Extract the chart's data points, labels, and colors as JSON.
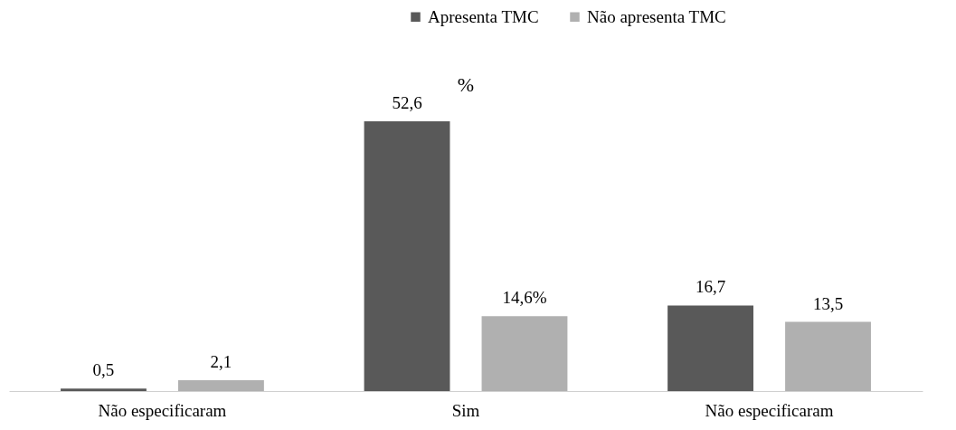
{
  "chart_data": {
    "type": "bar",
    "annotations": [
      "%"
    ],
    "categories": [
      "Não especificaram",
      "Sim",
      "Não especificaram"
    ],
    "series": [
      {
        "name": "Apresenta TMC",
        "color": "#595959",
        "values": [
          0.5,
          52.6,
          16.7
        ],
        "value_labels": [
          "0,5",
          "52,6",
          "16,7"
        ]
      },
      {
        "name": "Não apresenta TMC",
        "color": "#b0b0b0",
        "values": [
          2.1,
          14.6,
          13.5
        ],
        "value_labels": [
          "2,1",
          "14,6%",
          "13,5"
        ]
      }
    ],
    "legend": "top",
    "grid": false
  }
}
